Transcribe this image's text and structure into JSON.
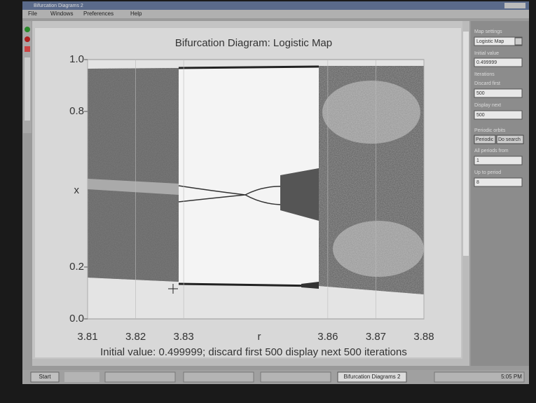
{
  "window": {
    "title": "Bifurcation Diagrams 2",
    "menu": [
      "File",
      "Windows",
      "Preferences",
      "Help"
    ]
  },
  "chart_data": {
    "type": "scatter",
    "title": "Bifurcation Diagram: Logistic Map",
    "xlabel": "r",
    "ylabel": "x",
    "footer": "Initial value: 0.499999; discard first 500 display next 500 iterations",
    "xlim": [
      3.81,
      3.88
    ],
    "ylim": [
      0,
      1
    ],
    "xticks": [
      3.81,
      3.82,
      3.83,
      3.86,
      3.87,
      3.88
    ],
    "yticks": [
      {
        "value": 1,
        "label": "1.0"
      },
      0.8,
      0.2,
      {
        "value": 0,
        "label": "0.0"
      }
    ]
  },
  "panel": {
    "map_label": "Map settings",
    "map": "Logistic Map",
    "initial_label": "Initial value",
    "initial": "0.499999",
    "iterations_label": "Iterations",
    "discard_label": "Discard first",
    "discard": "500",
    "display_label": "Display next",
    "display": "500",
    "orbits_label": "Periodic orbits",
    "periodic_button": "Periodic",
    "search_button": "Do search",
    "from_label": "All periods from",
    "from": "1",
    "upto_label": "Up to period",
    "upto": "8"
  },
  "taskbar": {
    "start": "Start",
    "task": "Bifurcation Diagrams 2",
    "clock": "5:05 PM"
  }
}
